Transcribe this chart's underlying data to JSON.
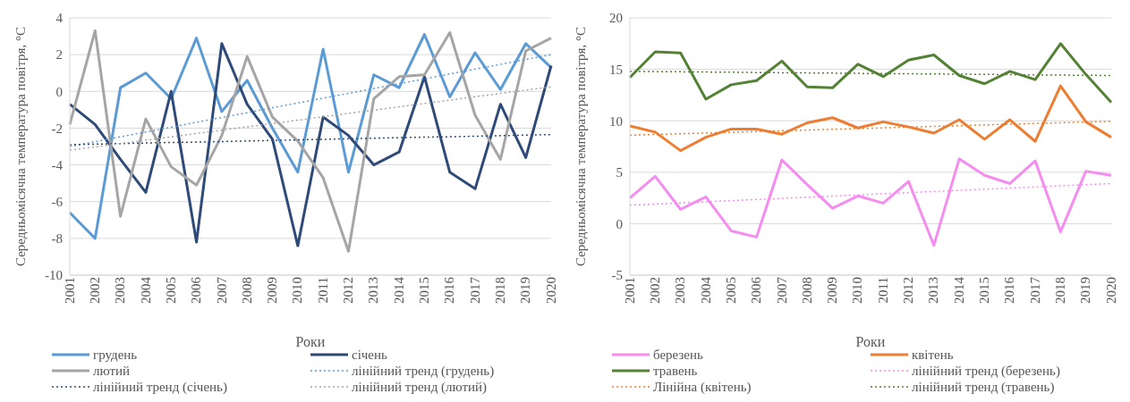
{
  "chart_data": [
    {
      "type": "line",
      "xlabel": "Роки",
      "ylabel": "Середньомісячна температура повітря, °С",
      "categories": [
        "2001",
        "2002",
        "2003",
        "2004",
        "2005",
        "2006",
        "2007",
        "2008",
        "2009",
        "2010",
        "2011",
        "2012",
        "2013",
        "2014",
        "2015",
        "2016",
        "2017",
        "2018",
        "2019",
        "2020"
      ],
      "series": [
        {
          "name": "грудень",
          "color": "#5b9bd5",
          "line_style": "solid",
          "values": [
            -6.6,
            -8.0,
            0.2,
            1.0,
            -0.4,
            2.9,
            -1.1,
            0.6,
            -2.0,
            -4.4,
            2.3,
            -4.4,
            0.9,
            0.2,
            3.1,
            -0.3,
            2.1,
            0.1,
            2.6,
            1.3
          ]
        },
        {
          "name": "січень",
          "color": "#2e4a78",
          "line_style": "solid",
          "values": [
            -0.7,
            -1.8,
            -3.7,
            -5.5,
            0.0,
            -8.2,
            2.6,
            -0.7,
            -2.6,
            -8.4,
            -1.4,
            -2.4,
            -4.0,
            -3.3,
            0.8,
            -4.4,
            -5.3,
            -0.7,
            -3.6,
            1.4
          ]
        },
        {
          "name": "лютий",
          "color": "#a5a5a5",
          "line_style": "solid",
          "values": [
            -1.8,
            3.3,
            -6.8,
            -1.5,
            -4.1,
            -5.1,
            -2.4,
            1.9,
            -1.4,
            -2.7,
            -4.7,
            -8.7,
            -0.4,
            0.8,
            0.9,
            3.2,
            -1.3,
            -3.7,
            2.2,
            2.9
          ]
        },
        {
          "name": "лінійний тренд (грудень)",
          "color": "#5b9bd5",
          "line_style": "dotted",
          "values": [
            -3.0,
            -2.74,
            -2.47,
            -2.21,
            -1.95,
            -1.68,
            -1.42,
            -1.16,
            -0.89,
            -0.63,
            -0.37,
            -0.11,
            0.16,
            0.42,
            0.68,
            0.95,
            1.21,
            1.47,
            1.74,
            2.0
          ]
        },
        {
          "name": "лінійний тренд (січень)",
          "color": "#2e4a78",
          "line_style": "dotted",
          "values": [
            -2.9,
            -2.87,
            -2.84,
            -2.81,
            -2.78,
            -2.76,
            -2.73,
            -2.7,
            -2.67,
            -2.64,
            -2.61,
            -2.58,
            -2.55,
            -2.52,
            -2.49,
            -2.47,
            -2.44,
            -2.41,
            -2.38,
            -2.35
          ]
        },
        {
          "name": "лінійний тренд (лютий)",
          "color": "#a5a5a5",
          "line_style": "dotted",
          "values": [
            -3.2,
            -3.02,
            -2.84,
            -2.66,
            -2.47,
            -2.29,
            -2.11,
            -1.93,
            -1.75,
            -1.57,
            -1.38,
            -1.2,
            -1.02,
            -0.84,
            -0.66,
            -0.48,
            -0.29,
            -0.11,
            0.07,
            0.25
          ]
        }
      ],
      "ylim": [
        -10,
        4
      ],
      "yticks": [
        -10,
        -8,
        -6,
        -4,
        -2,
        0,
        2,
        4
      ],
      "grid": "y",
      "legend": "bottom",
      "marker": "none"
    },
    {
      "type": "line",
      "xlabel": "Роки",
      "ylabel": "Середньомісячна температура повітря, °С",
      "categories": [
        "2001",
        "2002",
        "2003",
        "2004",
        "2005",
        "2006",
        "2007",
        "2008",
        "2009",
        "2010",
        "2011",
        "2012",
        "2013",
        "2014",
        "2015",
        "2016",
        "2017",
        "2018",
        "2019",
        "2020"
      ],
      "series": [
        {
          "name": "березень",
          "color": "#f58cf0",
          "line_style": "solid",
          "values": [
            2.5,
            4.6,
            1.4,
            2.6,
            -0.7,
            -1.3,
            6.2,
            3.8,
            1.5,
            2.7,
            2.0,
            4.1,
            -2.1,
            6.3,
            4.7,
            3.9,
            6.1,
            -0.8,
            5.1,
            4.7
          ]
        },
        {
          "name": "квітень",
          "color": "#ed7d31",
          "line_style": "solid",
          "values": [
            9.5,
            8.9,
            7.1,
            8.4,
            9.2,
            9.2,
            8.7,
            9.8,
            10.3,
            9.3,
            9.9,
            9.4,
            8.8,
            10.1,
            8.2,
            10.1,
            8.0,
            13.4,
            9.9,
            8.4
          ]
        },
        {
          "name": "травень",
          "color": "#548235",
          "line_style": "solid",
          "values": [
            14.2,
            16.7,
            16.6,
            12.1,
            13.5,
            13.9,
            15.8,
            13.3,
            13.2,
            15.5,
            14.3,
            15.9,
            16.4,
            14.4,
            13.6,
            14.8,
            14.0,
            17.5,
            14.5,
            11.8
          ]
        },
        {
          "name": "лінійний тренд (березень)",
          "color": "#f58cf0",
          "line_style": "dotted",
          "values": [
            1.8,
            1.91,
            2.02,
            2.13,
            2.24,
            2.35,
            2.46,
            2.57,
            2.68,
            2.79,
            2.91,
            3.02,
            3.13,
            3.24,
            3.35,
            3.46,
            3.57,
            3.68,
            3.79,
            3.9
          ]
        },
        {
          "name": "Лінійна (квітень)",
          "color": "#ed7d31",
          "line_style": "dotted",
          "values": [
            8.6,
            8.67,
            8.74,
            8.81,
            8.88,
            8.96,
            9.03,
            9.1,
            9.17,
            9.24,
            9.31,
            9.38,
            9.45,
            9.52,
            9.6,
            9.67,
            9.74,
            9.81,
            9.88,
            9.95
          ]
        },
        {
          "name": "лінійний тренд (травень)",
          "color": "#548235",
          "line_style": "dotted",
          "values": [
            14.8,
            14.78,
            14.76,
            14.74,
            14.72,
            14.69,
            14.67,
            14.65,
            14.63,
            14.61,
            14.59,
            14.57,
            14.55,
            14.53,
            14.51,
            14.48,
            14.46,
            14.44,
            14.42,
            14.4
          ]
        }
      ],
      "ylim": [
        -5,
        20
      ],
      "yticks": [
        -5,
        0,
        5,
        10,
        15,
        20
      ],
      "grid": "y",
      "legend": "bottom",
      "marker": "none"
    }
  ]
}
